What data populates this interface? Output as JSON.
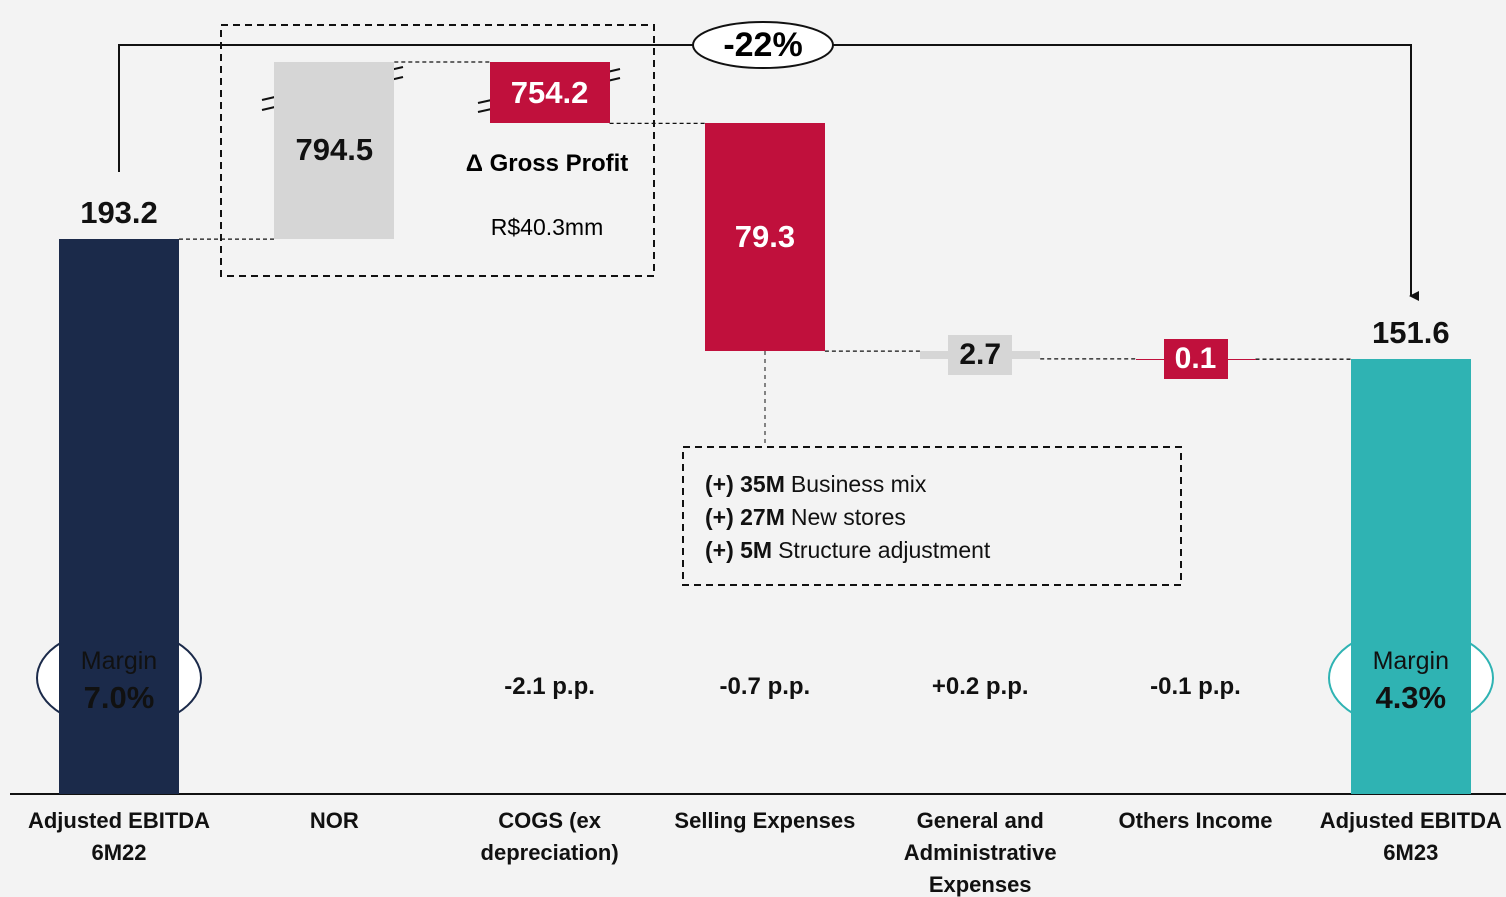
{
  "chart_data": {
    "type": "waterfall",
    "categories": [
      "Adjusted EBITDA 6M22",
      "NOR",
      "COGS (ex depreciation)",
      "Selling Expenses",
      "General and Administrative Expenses",
      "Others Income",
      "Adjusted EBITDA 6M23"
    ],
    "values": [
      193.2,
      794.5,
      -754.2,
      -79.3,
      -2.7,
      -0.1,
      151.6
    ],
    "value_labels": [
      "193.2",
      "794.5",
      "754.2",
      "79.3",
      "2.7",
      "0.1",
      "151.6"
    ],
    "colors": [
      "#1b2a4a",
      "#d6d6d6",
      "#c0103c",
      "#c0103c",
      "#d6d6d6",
      "#c0103c",
      "#2fb3b3"
    ],
    "change": "-22%",
    "gross_profit": {
      "title": "Δ Gross Profit",
      "value": "R$40.3mm"
    },
    "margin_change": [
      null,
      null,
      "-2.1 p.p.",
      "-0.7 p.p.",
      "+0.2 p.p.",
      "-0.1 p.p.",
      null
    ],
    "margins": [
      {
        "label": "Margin",
        "value": "7.0%"
      },
      {
        "label": "Margin",
        "value": "4.3%"
      }
    ],
    "notes": [
      {
        "bold": "(+) 35M",
        "text": "Business mix"
      },
      {
        "bold": "(+) 27M",
        "text": "New stores"
      },
      {
        "bold": "(+) 5M",
        "text": "Structure adjustment"
      }
    ]
  }
}
